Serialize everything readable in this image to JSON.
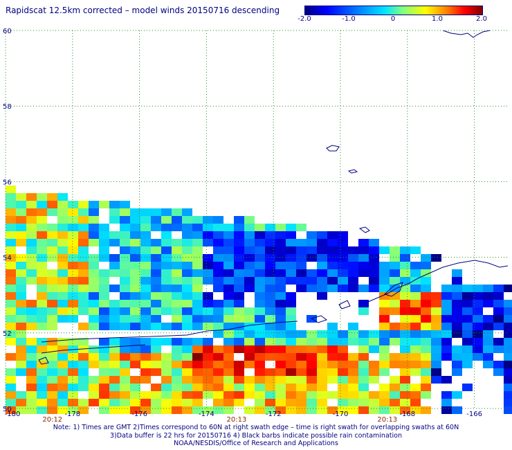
{
  "title": "Rapidscat 12.5km corrected – model winds 20150716 descending",
  "colorbar": {
    "tick_labels": [
      "-2.0",
      "-1.0",
      "0",
      "1.0",
      "2.0"
    ],
    "colors": [
      "#00007f",
      "#0000ff",
      "#0080ff",
      "#00e5ff",
      "#7fff7f",
      "#ffff00",
      "#ff8000",
      "#ff0000",
      "#7f0000"
    ],
    "range": [
      -2.0,
      2.0
    ]
  },
  "chart_data": {
    "type": "heatmap",
    "xlim": [
      -180,
      -165
    ],
    "ylim": [
      50,
      60
    ],
    "x_ticks": [
      -180,
      -178,
      -176,
      -174,
      -172,
      -170,
      -168,
      -166
    ],
    "x_tick_labels": [
      "-180",
      "-178",
      "-176",
      "-174",
      "-172",
      "-170",
      "-168",
      "-166"
    ],
    "y_ticks": [
      50,
      52,
      54,
      56,
      58,
      60
    ],
    "y_tick_labels": [
      "50",
      "52",
      "54",
      "56",
      "58",
      "60"
    ],
    "grid": true,
    "time_labels": [
      {
        "text": "20:12",
        "lon": -178.6
      },
      {
        "text": "20:13",
        "lon": -173.1
      },
      {
        "text": "20:13",
        "lon": -168.6
      }
    ],
    "rows": 30,
    "cols": 49
  },
  "notes": [
    "Note: 1) Times are GMT 2)Times correspond to 60N at right swath edge – time is right swath for overlapping swaths at 60N",
    "3)Data buffer is 22 hrs for 20150716 4) Black barbs indicate possible rain contamination",
    "NOAA/NESDIS/Office of Research and Applications"
  ]
}
